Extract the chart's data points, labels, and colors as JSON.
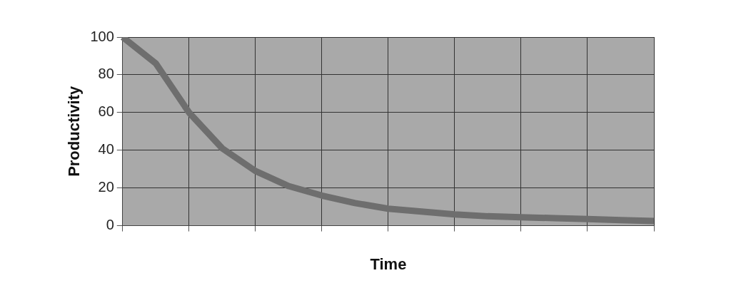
{
  "chart_data": {
    "type": "line",
    "xlabel": "Time",
    "ylabel": "Productivity",
    "categories": [
      null,
      null,
      null,
      null,
      null,
      null,
      null,
      null,
      null,
      null,
      null,
      null,
      null,
      null,
      null,
      null,
      null
    ],
    "series": [
      {
        "color": "#6e6e6e",
        "values": [
          100,
          86,
          60,
          41,
          29,
          21,
          16,
          12,
          9,
          7.5,
          6,
          5,
          4.5,
          4,
          3.5,
          3,
          2.5
        ]
      }
    ],
    "ylim": [
      0,
      100
    ],
    "yticks": [
      0,
      20,
      40,
      60,
      80,
      100
    ],
    "grid": true,
    "legend": false,
    "marker": "none",
    "line_style": "solid"
  }
}
